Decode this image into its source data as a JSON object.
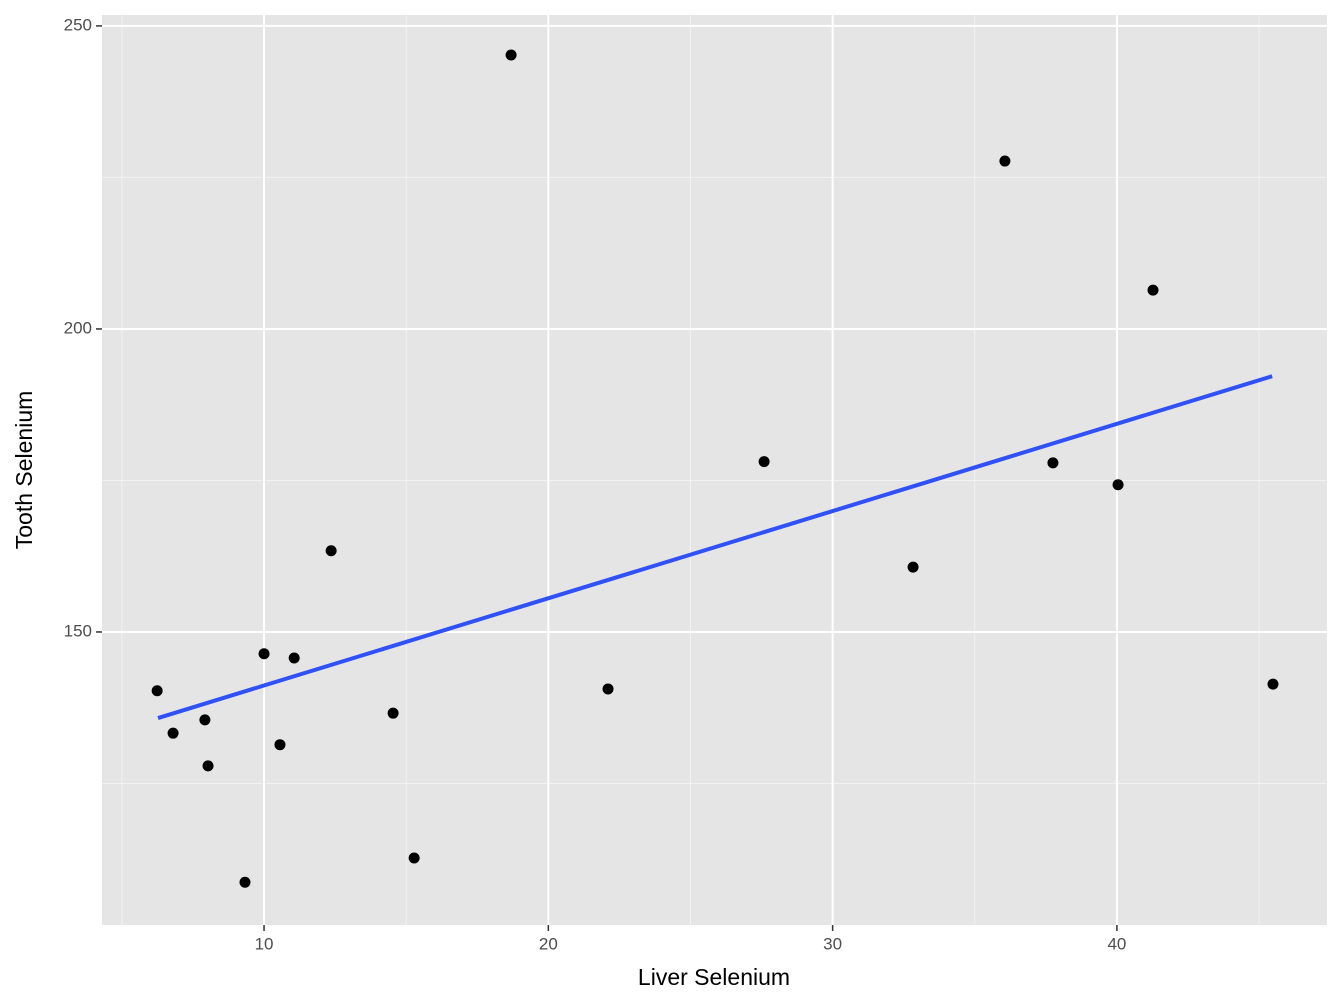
{
  "chart_data": {
    "type": "scatter",
    "x_label": "Liver Selenium",
    "y_label": "Tooth Selenium",
    "x": [
      6.24,
      6.8,
      7.92,
      8.03,
      9.33,
      10.0,
      10.56,
      11.06,
      12.36,
      14.54,
      15.28,
      18.69,
      22.1,
      27.59,
      32.83,
      36.06,
      37.75,
      40.04,
      41.27,
      45.49
    ],
    "values": [
      140.3,
      133.3,
      135.5,
      127.9,
      108.7,
      146.4,
      131.4,
      145.7,
      163.4,
      136.6,
      112.7,
      245.2,
      140.6,
      178.1,
      160.7,
      227.7,
      177.9,
      174.3,
      206.4,
      141.4
    ],
    "color": "#000000",
    "fit": {
      "x": [
        6.27,
        45.46
      ],
      "values": [
        135.8,
        192.2
      ],
      "color": "#3050f8"
    },
    "xlim": [
      4.3,
      47.39
    ],
    "ylim": [
      101.65,
      251.8
    ],
    "xticks": [
      10,
      20,
      30,
      40
    ],
    "yticks": [
      150,
      200,
      250
    ],
    "x_minor_grid": [
      5,
      15,
      25,
      35,
      45
    ],
    "y_minor_grid": [
      125,
      175,
      225
    ],
    "grid": true
  }
}
